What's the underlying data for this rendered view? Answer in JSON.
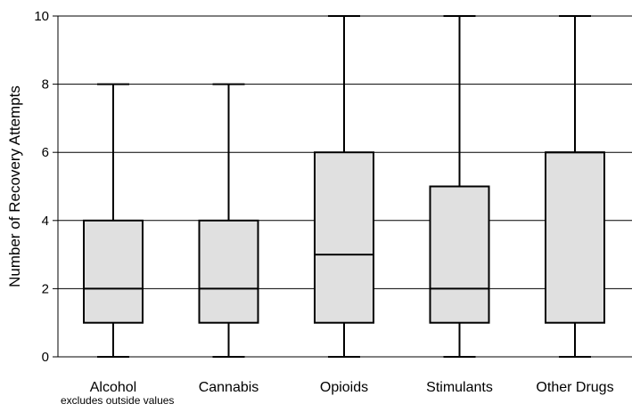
{
  "chart_data": {
    "type": "boxplot",
    "categories": [
      "Alcohol",
      "Cannabis",
      "Opioids",
      "Stimulants",
      "Other Drugs"
    ],
    "boxes": [
      {
        "category": "Alcohol",
        "min": 0,
        "q1": 1,
        "median": 2,
        "q3": 4,
        "max": 8
      },
      {
        "category": "Cannabis",
        "min": 0,
        "q1": 1,
        "median": 2,
        "q3": 4,
        "max": 8
      },
      {
        "category": "Opioids",
        "min": 0,
        "q1": 1,
        "median": 3,
        "q3": 6,
        "max": 10
      },
      {
        "category": "Stimulants",
        "min": 0,
        "q1": 1,
        "median": 2,
        "q3": 5,
        "max": 10
      },
      {
        "category": "Other Drugs",
        "min": 0,
        "q1": 1,
        "median": 6,
        "q3": 6,
        "max": 10
      }
    ],
    "ylabel": "Number of Recovery Attempts",
    "xlabel": "",
    "ylim": [
      0,
      10
    ],
    "yticks": [
      0,
      2,
      4,
      6,
      8,
      10
    ],
    "grid": true,
    "box_fill": "#e0e0e0",
    "note": "excludes outside values"
  }
}
